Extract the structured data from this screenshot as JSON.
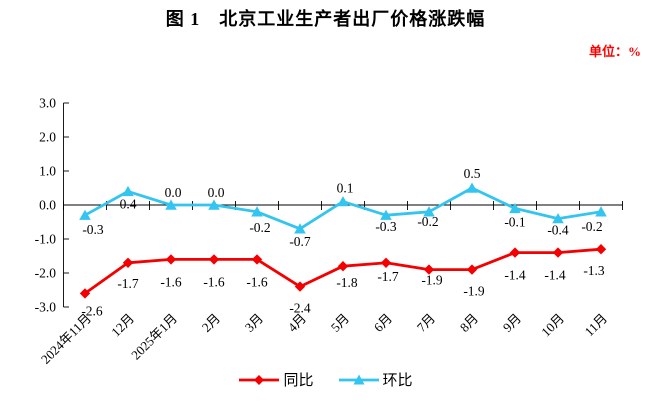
{
  "title": "图 1　北京工业生产者出厂价格涨跌幅",
  "unit_label": "单位：%",
  "colors": {
    "tongbi_red": "#f40000",
    "huanbi_cyan": "#33c5f0",
    "axis": "#000000",
    "unit_text": "#ff0000",
    "label_text": "#000000"
  },
  "chart_data": {
    "type": "line",
    "title": "图 1　北京工业生产者出厂价格涨跌幅",
    "unit": "%",
    "categories": [
      "2024年11月",
      "12月",
      "2025年1月",
      "2月",
      "3月",
      "4月",
      "5月",
      "6月",
      "7月",
      "8月",
      "9月",
      "10月",
      "11月"
    ],
    "series": [
      {
        "name": "同比",
        "marker": "diamond",
        "color": "#f40000",
        "values": [
          -2.6,
          -1.7,
          -1.6,
          -1.6,
          -1.6,
          -2.4,
          -1.8,
          -1.7,
          -1.9,
          -1.9,
          -1.4,
          -1.4,
          -1.3
        ],
        "label_offsets": [
          [
            7,
            22
          ],
          [
            0,
            25
          ],
          [
            0,
            27
          ],
          [
            0,
            27
          ],
          [
            0,
            27
          ],
          [
            0,
            26
          ],
          [
            4,
            21
          ],
          [
            2,
            18
          ],
          [
            3,
            15
          ],
          [
            2,
            26
          ],
          [
            0,
            27
          ],
          [
            -3,
            27
          ],
          [
            -7,
            26
          ]
        ]
      },
      {
        "name": "环比",
        "marker": "triangle",
        "color": "#33c5f0",
        "values": [
          -0.3,
          0.4,
          0.0,
          0.0,
          -0.2,
          -0.7,
          0.1,
          -0.3,
          -0.2,
          0.5,
          -0.1,
          -0.4,
          -0.2
        ],
        "label_offsets": [
          [
            8,
            19
          ],
          [
            0,
            17
          ],
          [
            2,
            -8
          ],
          [
            2,
            -8
          ],
          [
            3,
            20
          ],
          [
            0,
            17
          ],
          [
            2,
            -9
          ],
          [
            0,
            16
          ],
          [
            -1,
            14
          ],
          [
            0,
            -10
          ],
          [
            0,
            18
          ],
          [
            0,
            16
          ],
          [
            -9,
            19
          ]
        ]
      }
    ],
    "ylim": [
      -3,
      3
    ],
    "ytick_step": 1,
    "grid": false,
    "zero_axis": true,
    "legend_position": "bottom"
  }
}
